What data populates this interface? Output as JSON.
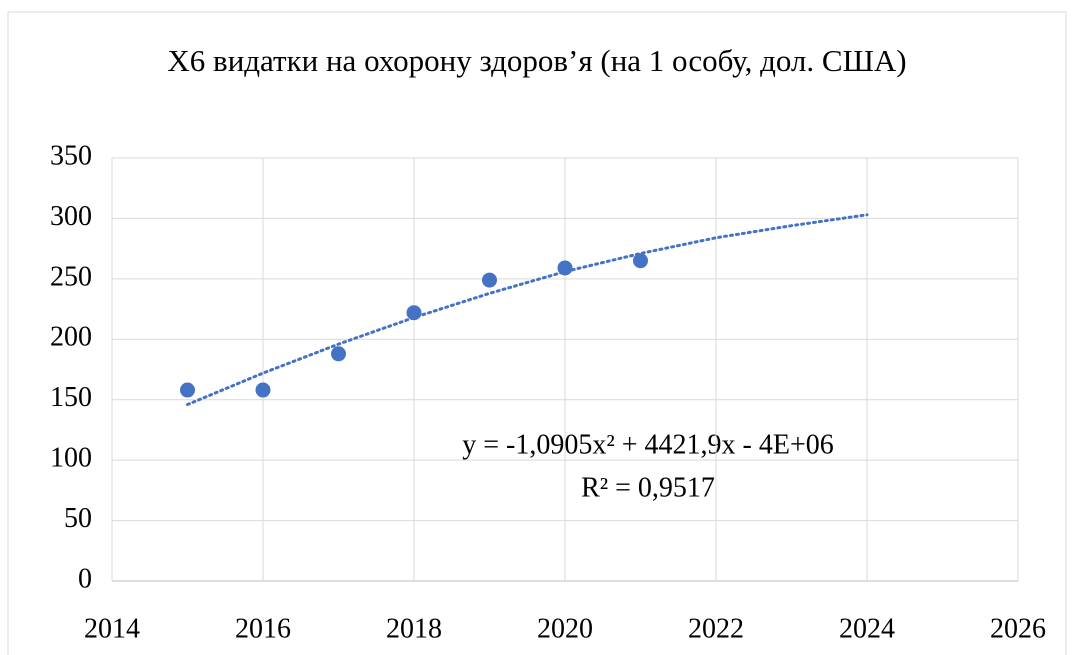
{
  "chart_data": {
    "type": "scatter",
    "title": "X6 видатки на охорону здоров’я (на 1 особу, дол. США)",
    "x": [
      2015,
      2016,
      2017,
      2018,
      2019,
      2020,
      2021
    ],
    "series": [
      {
        "color": "#4472c4",
        "values": [
          158,
          158,
          188,
          222,
          249,
          259,
          265
        ]
      }
    ],
    "trendline": {
      "type": "line",
      "style": "dotted",
      "color": "#4472c4",
      "x": [
        2015,
        2016,
        2017,
        2018,
        2019,
        2020,
        2021,
        2022,
        2023,
        2024
      ],
      "values": [
        146,
        172,
        196,
        218,
        238,
        256,
        271,
        284,
        294,
        303
      ]
    },
    "annotations": [
      "y = -1,0905x² + 4421,9x - 4E+06",
      "R² = 0,9517"
    ],
    "xlim": [
      2014,
      2026
    ],
    "xticks": [
      2014,
      2016,
      2018,
      2020,
      2022,
      2024,
      2026
    ],
    "ylim": [
      0,
      350
    ],
    "yticks": [
      0,
      50,
      100,
      150,
      200,
      250,
      300,
      350
    ],
    "grid": true
  }
}
